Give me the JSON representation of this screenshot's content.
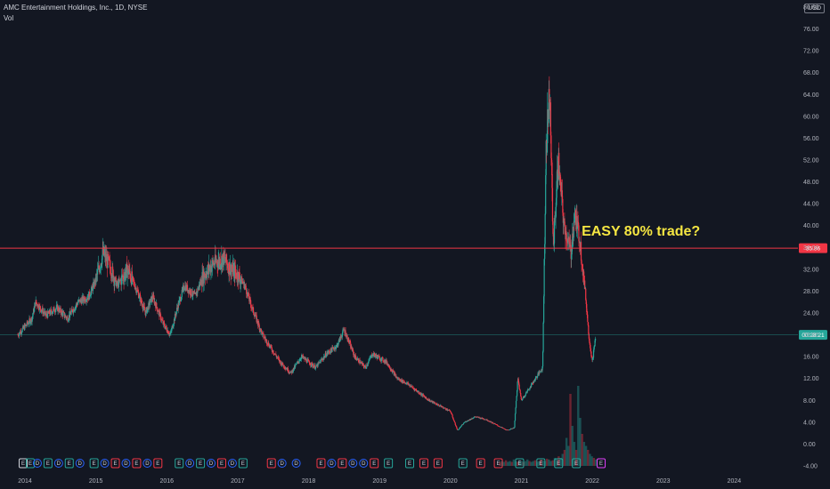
{
  "header": {
    "title": "AMC Entertainment Holdings, Inc., 1D, NYSE",
    "volume_label": "Vol",
    "currency": "USD"
  },
  "chart_data": {
    "type": "candlestick",
    "symbol": "AMC",
    "interval": "1D",
    "exchange": "NYSE",
    "ylim": [
      -4,
      80
    ],
    "y_ticks": [
      "80.00",
      "76.00",
      "72.00",
      "68.00",
      "64.00",
      "60.00",
      "56.00",
      "52.00",
      "48.00",
      "44.00",
      "40.00",
      "36.00",
      "32.00",
      "28.00",
      "24.00",
      "20.00",
      "16.00",
      "12.00",
      "8.00",
      "4.00",
      "0.00",
      "-4.00"
    ],
    "x_ticks": [
      "2014",
      "2015",
      "2016",
      "2017",
      "2018",
      "2019",
      "2020",
      "2021",
      "2022",
      "2023",
      "2024"
    ],
    "xlim": [
      2014.0,
      2025.0
    ],
    "price_path": [
      [
        2014.0,
        20.0
      ],
      [
        2014.2,
        23.0
      ],
      [
        2014.25,
        26.0
      ],
      [
        2014.4,
        23.5
      ],
      [
        2014.55,
        25.0
      ],
      [
        2014.7,
        23.0
      ],
      [
        2014.85,
        26.0
      ],
      [
        2015.0,
        27.0
      ],
      [
        2015.1,
        30.0
      ],
      [
        2015.2,
        35.0
      ],
      [
        2015.3,
        32.5
      ],
      [
        2015.4,
        29.0
      ],
      [
        2015.55,
        32.0
      ],
      [
        2015.7,
        27.5
      ],
      [
        2015.8,
        24.0
      ],
      [
        2015.9,
        27.0
      ],
      [
        2016.05,
        22.0
      ],
      [
        2016.15,
        20.0
      ],
      [
        2016.25,
        25.0
      ],
      [
        2016.35,
        29.0
      ],
      [
        2016.5,
        27.0
      ],
      [
        2016.6,
        30.5
      ],
      [
        2016.75,
        33.0
      ],
      [
        2016.9,
        34.0
      ],
      [
        2017.0,
        32.0
      ],
      [
        2017.1,
        31.0
      ],
      [
        2017.2,
        29.0
      ],
      [
        2017.3,
        25.0
      ],
      [
        2017.45,
        20.0
      ],
      [
        2017.6,
        17.0
      ],
      [
        2017.7,
        15.0
      ],
      [
        2017.85,
        13.0
      ],
      [
        2018.0,
        16.0
      ],
      [
        2018.2,
        14.0
      ],
      [
        2018.35,
        16.5
      ],
      [
        2018.5,
        18.0
      ],
      [
        2018.6,
        21.0
      ],
      [
        2018.75,
        16.0
      ],
      [
        2018.9,
        14.0
      ],
      [
        2019.0,
        16.5
      ],
      [
        2019.2,
        15.0
      ],
      [
        2019.35,
        12.0
      ],
      [
        2019.5,
        11.0
      ],
      [
        2019.65,
        9.5
      ],
      [
        2019.8,
        8.0
      ],
      [
        2019.95,
        7.0
      ],
      [
        2020.1,
        6.0
      ],
      [
        2020.2,
        2.5
      ],
      [
        2020.3,
        4.0
      ],
      [
        2020.45,
        5.0
      ],
      [
        2020.6,
        4.5
      ],
      [
        2020.75,
        3.5
      ],
      [
        2020.9,
        2.5
      ],
      [
        2021.0,
        3.0
      ],
      [
        2021.05,
        12.0
      ],
      [
        2021.1,
        8.0
      ],
      [
        2021.25,
        11.0
      ],
      [
        2021.4,
        14.0
      ],
      [
        2021.45,
        55.0
      ],
      [
        2021.5,
        65.0
      ],
      [
        2021.55,
        36.0
      ],
      [
        2021.62,
        52.0
      ],
      [
        2021.7,
        40.0
      ],
      [
        2021.8,
        35.0
      ],
      [
        2021.85,
        42.0
      ],
      [
        2021.92,
        38.0
      ],
      [
        2022.0,
        28.0
      ],
      [
        2022.05,
        20.0
      ],
      [
        2022.1,
        15.0
      ],
      [
        2022.15,
        20.0
      ]
    ],
    "volume_bars": [
      0.05,
      0.06,
      0.05,
      0.07,
      0.05,
      0.06,
      0.05,
      0.08,
      0.06,
      0.05,
      0.07,
      0.06,
      0.05,
      0.06,
      0.08,
      0.06,
      0.05,
      0.06,
      0.07,
      0.05,
      0.06,
      0.08,
      0.07,
      0.06,
      0.09,
      0.08,
      0.06,
      0.07,
      0.1,
      0.09,
      0.12,
      0.1,
      0.15,
      0.2,
      0.35,
      0.25,
      0.9,
      0.5,
      0.3,
      0.2,
      1.0,
      0.6,
      0.4,
      0.3,
      0.25,
      0.2,
      0.15,
      0.12,
      0.1,
      0.08
    ],
    "horizontal_lines": [
      {
        "value": 35.86,
        "label": "35.86",
        "color": "#f23645"
      },
      {
        "value": 20.0,
        "label": "00:28:21",
        "color": "#26a69a"
      }
    ],
    "annotation": {
      "text": "EASY 80% trade?",
      "x": 2022.0,
      "y": 39.0
    },
    "events": [
      {
        "x": 2014.0,
        "kind": "E",
        "color": "#d1d4dc"
      },
      {
        "x": 2014.1,
        "kind": "E",
        "color": "#26a69a"
      },
      {
        "x": 2014.2,
        "kind": "D",
        "color": "#2962ff"
      },
      {
        "x": 2014.35,
        "kind": "E",
        "color": "#26a69a"
      },
      {
        "x": 2014.5,
        "kind": "D",
        "color": "#2962ff"
      },
      {
        "x": 2014.65,
        "kind": "E",
        "color": "#26a69a"
      },
      {
        "x": 2014.8,
        "kind": "D",
        "color": "#2962ff"
      },
      {
        "x": 2015.0,
        "kind": "E",
        "color": "#26a69a"
      },
      {
        "x": 2015.15,
        "kind": "D",
        "color": "#2962ff"
      },
      {
        "x": 2015.3,
        "kind": "E",
        "color": "#f23645"
      },
      {
        "x": 2015.45,
        "kind": "D",
        "color": "#2962ff"
      },
      {
        "x": 2015.6,
        "kind": "E",
        "color": "#f23645"
      },
      {
        "x": 2015.75,
        "kind": "D",
        "color": "#2962ff"
      },
      {
        "x": 2015.9,
        "kind": "E",
        "color": "#f23645"
      },
      {
        "x": 2016.2,
        "kind": "E",
        "color": "#26a69a"
      },
      {
        "x": 2016.35,
        "kind": "D",
        "color": "#2962ff"
      },
      {
        "x": 2016.5,
        "kind": "E",
        "color": "#26a69a"
      },
      {
        "x": 2016.65,
        "kind": "D",
        "color": "#2962ff"
      },
      {
        "x": 2016.8,
        "kind": "E",
        "color": "#f23645"
      },
      {
        "x": 2016.95,
        "kind": "D",
        "color": "#2962ff"
      },
      {
        "x": 2017.1,
        "kind": "E",
        "color": "#26a69a"
      },
      {
        "x": 2017.5,
        "kind": "E",
        "color": "#f23645"
      },
      {
        "x": 2017.65,
        "kind": "D",
        "color": "#2962ff"
      },
      {
        "x": 2017.85,
        "kind": "D",
        "color": "#2962ff"
      },
      {
        "x": 2018.2,
        "kind": "E",
        "color": "#f23645"
      },
      {
        "x": 2018.35,
        "kind": "D",
        "color": "#2962ff"
      },
      {
        "x": 2018.5,
        "kind": "E",
        "color": "#f23645"
      },
      {
        "x": 2018.65,
        "kind": "D",
        "color": "#2962ff"
      },
      {
        "x": 2018.8,
        "kind": "D",
        "color": "#2962ff"
      },
      {
        "x": 2018.95,
        "kind": "E",
        "color": "#f23645"
      },
      {
        "x": 2019.15,
        "kind": "E",
        "color": "#26a69a"
      },
      {
        "x": 2019.45,
        "kind": "E",
        "color": "#26a69a"
      },
      {
        "x": 2019.65,
        "kind": "E",
        "color": "#f23645"
      },
      {
        "x": 2019.85,
        "kind": "E",
        "color": "#f23645"
      },
      {
        "x": 2020.2,
        "kind": "E",
        "color": "#26a69a"
      },
      {
        "x": 2020.45,
        "kind": "E",
        "color": "#f23645"
      },
      {
        "x": 2020.7,
        "kind": "E",
        "color": "#f23645"
      },
      {
        "x": 2021.0,
        "kind": "E",
        "color": "#26a69a"
      },
      {
        "x": 2021.3,
        "kind": "E",
        "color": "#26a69a"
      },
      {
        "x": 2021.55,
        "kind": "E",
        "color": "#26a69a"
      },
      {
        "x": 2021.8,
        "kind": "E",
        "color": "#26a69a"
      },
      {
        "x": 2022.15,
        "kind": "E",
        "color": "#e040fb"
      }
    ],
    "colors": {
      "up": "#26a69a",
      "down": "#f23645",
      "background": "#131722",
      "axis_text": "#b2b5be",
      "resistance": "#f23645",
      "current_price": "#26a69a",
      "annotation": "#f5e642"
    }
  }
}
